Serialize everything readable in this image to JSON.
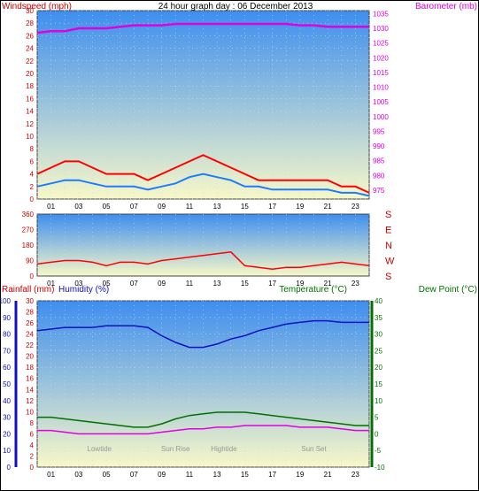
{
  "title": "24 hour graph day : 06 December 2013",
  "hours": [
    "01",
    "03",
    "05",
    "07",
    "09",
    "11",
    "13",
    "15",
    "17",
    "19",
    "21",
    "23"
  ],
  "colors": {
    "wind": "#ff0000",
    "gust_avg": "#1e7bff",
    "baro": "#e000e0",
    "rain": "#cc0000",
    "humidity": "#1010c0",
    "temperature": "#007000",
    "dewpoint": "#e000e0",
    "sky_top": "#3d8ef0",
    "sky_bottom": "#f8f8c8"
  },
  "chart_data": [
    {
      "type": "line",
      "name": "wind-baro",
      "y_left": {
        "label": "Windspeed (mph)",
        "ticks": [
          "30",
          "28",
          "26",
          "24",
          "22",
          "20",
          "18",
          "16",
          "14",
          "12",
          "10",
          "8",
          "6",
          "4",
          "2",
          "0"
        ],
        "ylim": [
          0,
          30
        ]
      },
      "y_right": {
        "label": "Barometer (mb)",
        "ticks": [
          "1035",
          "1030",
          "1025",
          "1020",
          "1015",
          "1010",
          "1005",
          "1000",
          "995",
          "990",
          "985",
          "980",
          "975"
        ],
        "ylim": [
          972,
          1036
        ]
      },
      "series": [
        {
          "key": "gust",
          "x": [
            0,
            1,
            2,
            3,
            4,
            5,
            6,
            7,
            8,
            9,
            10,
            11,
            12,
            13,
            14,
            15,
            16,
            17,
            18,
            19,
            20,
            21,
            22,
            23,
            24
          ],
          "values": [
            4,
            5,
            6,
            6,
            5,
            4,
            4,
            4,
            3,
            4,
            5,
            6,
            7,
            6,
            5,
            4,
            3,
            3,
            3,
            3,
            3,
            3,
            2,
            2,
            1
          ]
        },
        {
          "key": "avg",
          "x": [
            0,
            1,
            2,
            3,
            4,
            5,
            6,
            7,
            8,
            9,
            10,
            11,
            12,
            13,
            14,
            15,
            16,
            17,
            18,
            19,
            20,
            21,
            22,
            23,
            24
          ],
          "values": [
            2,
            2.5,
            3,
            3,
            2.5,
            2,
            2,
            2,
            1.5,
            2,
            2.5,
            3.5,
            4,
            3.5,
            3,
            2,
            2,
            1.5,
            1.5,
            1.5,
            1.5,
            1.5,
            1,
            1,
            0.5
          ]
        },
        {
          "key": "baro",
          "x": [
            0,
            1,
            2,
            3,
            4,
            5,
            6,
            7,
            8,
            9,
            10,
            11,
            12,
            13,
            14,
            15,
            16,
            17,
            18,
            19,
            20,
            21,
            22,
            23,
            24
          ],
          "values": [
            1028.5,
            1029,
            1029,
            1030,
            1030,
            1030,
            1030.5,
            1031,
            1031,
            1031,
            1031.5,
            1031.5,
            1031.5,
            1031.5,
            1031.5,
            1031.5,
            1031.5,
            1031.5,
            1031.5,
            1031,
            1031,
            1030.5,
            1030.5,
            1030.5,
            1030.5
          ]
        }
      ]
    },
    {
      "type": "line",
      "name": "wind-direction",
      "y_left": {
        "ticks": [
          "360",
          "270",
          "180",
          "90",
          "0"
        ],
        "ylim": [
          0,
          360
        ]
      },
      "y_right": {
        "ticks": [
          "S",
          "E",
          "N",
          "W",
          "S"
        ]
      },
      "series": [
        {
          "key": "dir",
          "x": [
            0,
            1,
            2,
            3,
            4,
            5,
            6,
            7,
            8,
            9,
            10,
            11,
            12,
            13,
            14,
            15,
            16,
            17,
            18,
            19,
            20,
            21,
            22,
            23,
            24
          ],
          "values": [
            70,
            80,
            90,
            90,
            80,
            60,
            80,
            80,
            70,
            90,
            100,
            110,
            120,
            130,
            140,
            60,
            50,
            40,
            50,
            50,
            60,
            70,
            80,
            70,
            60
          ]
        }
      ]
    },
    {
      "type": "line",
      "name": "rain-humidity-temp",
      "y_humidity": {
        "label": "Humidity (%)",
        "ticks": [
          "100",
          "90",
          "80",
          "70",
          "60",
          "50",
          "40",
          "30",
          "20",
          "10",
          "0"
        ],
        "ylim": [
          0,
          100
        ]
      },
      "y_rain": {
        "label": "Rainfall (mm)",
        "ticks": [
          "30",
          "28",
          "26",
          "24",
          "22",
          "20",
          "18",
          "16",
          "14",
          "12",
          "10",
          "8",
          "6",
          "4",
          "2",
          "0"
        ],
        "ylim": [
          0,
          30
        ]
      },
      "y_temp": {
        "label": "Temperature (°C)",
        "ticks": [
          "40",
          "35",
          "30",
          "25",
          "20",
          "15",
          "10",
          "5",
          "0",
          "-5",
          "-10"
        ],
        "ylim": [
          -10,
          40
        ]
      },
      "y_dew_label": "Dew Point (°C)",
      "series": [
        {
          "key": "humidity",
          "x": [
            0,
            1,
            2,
            3,
            4,
            5,
            6,
            7,
            8,
            9,
            10,
            11,
            12,
            13,
            14,
            15,
            16,
            17,
            18,
            19,
            20,
            21,
            22,
            23,
            24
          ],
          "values": [
            82,
            83,
            84,
            84,
            84,
            85,
            85,
            85,
            84,
            79,
            75,
            72,
            72,
            74,
            77,
            79,
            82,
            84,
            86,
            87,
            88,
            88,
            87,
            87,
            87
          ]
        },
        {
          "key": "temperature",
          "x": [
            0,
            1,
            2,
            3,
            4,
            5,
            6,
            7,
            8,
            9,
            10,
            11,
            12,
            13,
            14,
            15,
            16,
            17,
            18,
            19,
            20,
            21,
            22,
            23,
            24
          ],
          "values": [
            5,
            5,
            4.5,
            4,
            3.5,
            3,
            2.5,
            2,
            2,
            3,
            4.5,
            5.5,
            6,
            6.5,
            6.5,
            6.5,
            6,
            5.5,
            5,
            4.5,
            4,
            3.5,
            3,
            2.5,
            2.5
          ]
        },
        {
          "key": "dewpoint",
          "x": [
            0,
            1,
            2,
            3,
            4,
            5,
            6,
            7,
            8,
            9,
            10,
            11,
            12,
            13,
            14,
            15,
            16,
            17,
            18,
            19,
            20,
            21,
            22,
            23,
            24
          ],
          "values": [
            1,
            1,
            0.5,
            0,
            0,
            0,
            0,
            0,
            0,
            0.5,
            1,
            1.5,
            1.5,
            2,
            2,
            2.5,
            2.5,
            2.5,
            2.5,
            2,
            2,
            2,
            1.5,
            1,
            1
          ]
        }
      ],
      "annotations": [
        "Lowtide",
        "Sun Rise",
        "Hightide",
        "Sun Set"
      ]
    }
  ]
}
